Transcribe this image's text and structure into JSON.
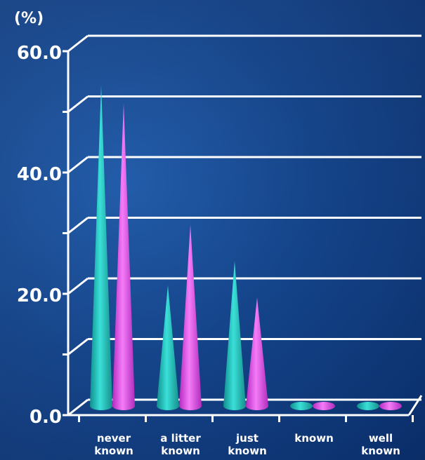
{
  "chart_data": {
    "type": "bar",
    "style": "3d-cone",
    "unit_label": "(%)",
    "y_tick_labels": [
      "0.0",
      "20.0",
      "40.0",
      "60.0"
    ],
    "ylim": [
      0,
      60
    ],
    "grid": true,
    "categories": [
      [
        "never",
        "known"
      ],
      [
        "a litter",
        "known"
      ],
      [
        "just",
        "known"
      ],
      [
        "known"
      ],
      [
        "well",
        "known"
      ]
    ],
    "series": [
      {
        "color": "#22c4c0",
        "values": [
          53,
          20,
          24,
          1,
          1
        ]
      },
      {
        "color": "#e050e8",
        "values": [
          50,
          30,
          18,
          1,
          1
        ]
      }
    ]
  }
}
